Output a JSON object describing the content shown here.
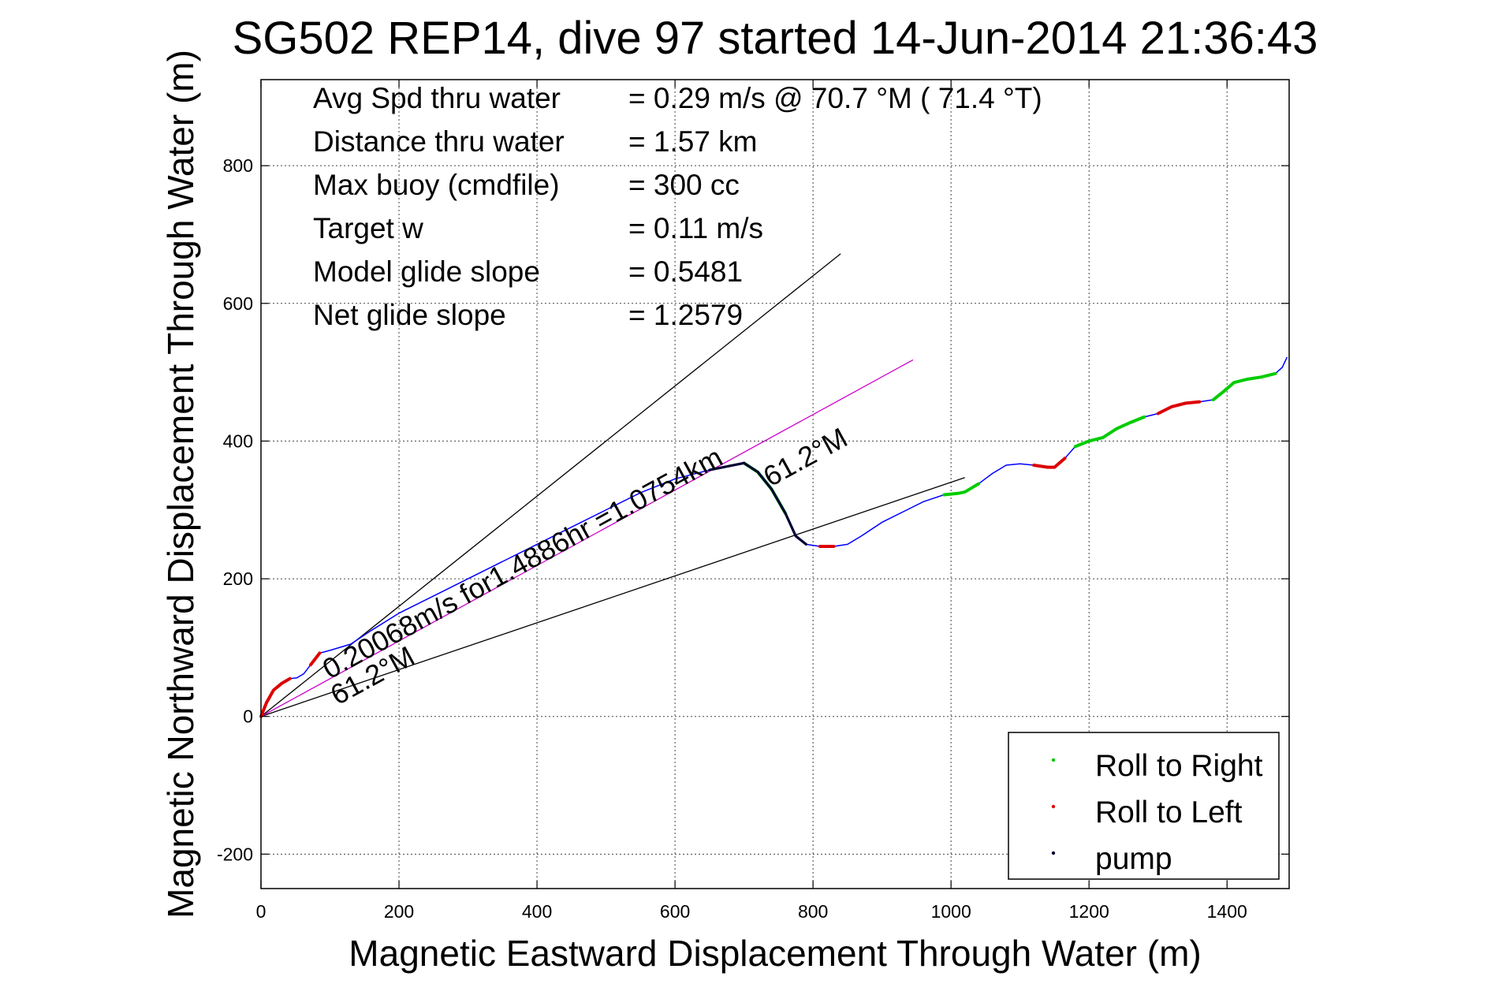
{
  "chart_data": {
    "type": "line",
    "title": "SG502 REP14, dive 97 started 14-Jun-2014 21:36:43",
    "xlabel": "Magnetic Eastward Displacement Through Water (m)",
    "ylabel": "Magnetic Northward Displacement Through Water (m)",
    "xlim": [
      0,
      1490
    ],
    "ylim": [
      -250,
      925
    ],
    "xticks": [
      0,
      200,
      400,
      600,
      800,
      1000,
      1200,
      1400
    ],
    "yticks": [
      -200,
      0,
      200,
      400,
      600,
      800
    ],
    "grid": true,
    "legend_position": "bottom-right",
    "stats": [
      {
        "label": "Avg Spd thru water",
        "value": "=  0.29 m/s @  70.7 °M ( 71.4 °T)"
      },
      {
        "label": "Distance thru water",
        "value": "=  1.57 km"
      },
      {
        "label": "Max buoy (cmdfile)",
        "value": "= 300 cc"
      },
      {
        "label": "Target w",
        "value": "= 0.11 m/s"
      },
      {
        "label": "Model glide slope",
        "value": "= 0.5481"
      },
      {
        "label": "Net glide slope",
        "value": "= 1.2579"
      }
    ],
    "annotations": {
      "current": "0.20068m/s for1.4886hr =1.0754km",
      "heading_upper": "61.2°M",
      "heading_lower": "61.2°M"
    },
    "legend": [
      {
        "label": "Roll to Right",
        "color": "#00cc00"
      },
      {
        "label": "Roll to Left",
        "color": "#dd0000"
      },
      {
        "label": "pump",
        "color": "#000033"
      }
    ],
    "reference_lines": [
      {
        "color": "#000000",
        "points": [
          [
            0,
            0
          ],
          [
            840,
            672
          ]
        ]
      },
      {
        "color": "#000000",
        "points": [
          [
            0,
            0
          ],
          [
            1020,
            347
          ]
        ]
      },
      {
        "color": "#cc00cc",
        "points": [
          [
            0,
            0
          ],
          [
            945,
            518
          ]
        ]
      }
    ],
    "track": {
      "color": "#0000ff",
      "x": [
        0,
        8,
        18,
        30,
        42,
        52,
        62,
        72,
        85,
        100,
        130,
        160,
        200,
        250,
        300,
        350,
        400,
        450,
        500,
        550,
        600,
        650,
        700,
        720,
        740,
        760,
        775,
        790,
        810,
        830,
        850,
        870,
        900,
        930,
        960,
        990,
        1010,
        1020,
        1040,
        1060,
        1080,
        1100,
        1120,
        1140,
        1150,
        1165,
        1180,
        1200,
        1220,
        1240,
        1260,
        1280,
        1300,
        1320,
        1340,
        1360,
        1380,
        1395,
        1410,
        1430,
        1450,
        1470,
        1480,
        1487
      ],
      "y": [
        0,
        20,
        38,
        48,
        55,
        56,
        62,
        75,
        92,
        96,
        105,
        125,
        150,
        175,
        200,
        225,
        250,
        275,
        300,
        325,
        345,
        358,
        368,
        355,
        330,
        295,
        262,
        250,
        247,
        247,
        250,
        262,
        282,
        297,
        312,
        322,
        324,
        326,
        338,
        353,
        365,
        367,
        365,
        362,
        362,
        375,
        392,
        400,
        405,
        418,
        427,
        435,
        440,
        450,
        455,
        457,
        460,
        472,
        485,
        490,
        493,
        498,
        507,
        522
      ]
    },
    "roll_right_segments": [
      [
        22,
        25
      ],
      [
        35,
        38
      ],
      [
        46,
        51
      ],
      [
        56,
        61
      ]
    ],
    "roll_left_segments": [
      [
        0,
        4
      ],
      [
        7,
        8
      ],
      [
        28,
        29
      ],
      [
        42,
        45
      ],
      [
        52,
        55
      ]
    ],
    "pump_segments": [
      [
        21,
        27
      ]
    ]
  }
}
